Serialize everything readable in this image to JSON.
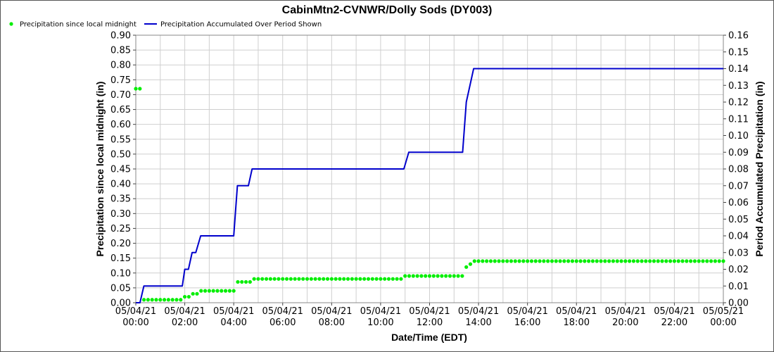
{
  "chart_data": {
    "type": "line",
    "title": "CabinMtn2-CVNWR/Dolly Sods (DY003)",
    "xlabel": "Date/Time (EDT)",
    "ylabel": "Precipitation since local midnight (in)",
    "y2label": "Period Accumulated Precipitation (in)",
    "legend": {
      "placement": "top-left",
      "entries": [
        "Precipitation since local midnight",
        "Precipitation Accumulated Over Period Shown"
      ]
    },
    "grid": true,
    "xlim": [
      0,
      24
    ],
    "ylim": [
      0,
      0.9
    ],
    "y2lim": [
      0,
      0.16
    ],
    "xticks": [
      {
        "value": 0,
        "date": "05/04/21",
        "time": "00:00"
      },
      {
        "value": 2,
        "date": "05/04/21",
        "time": "02:00"
      },
      {
        "value": 4,
        "date": "05/04/21",
        "time": "04:00"
      },
      {
        "value": 6,
        "date": "05/04/21",
        "time": "06:00"
      },
      {
        "value": 8,
        "date": "05/04/21",
        "time": "08:00"
      },
      {
        "value": 10,
        "date": "05/04/21",
        "time": "10:00"
      },
      {
        "value": 12,
        "date": "05/04/21",
        "time": "12:00"
      },
      {
        "value": 14,
        "date": "05/04/21",
        "time": "14:00"
      },
      {
        "value": 16,
        "date": "05/04/21",
        "time": "16:00"
      },
      {
        "value": 18,
        "date": "05/04/21",
        "time": "18:00"
      },
      {
        "value": 20,
        "date": "05/04/21",
        "time": "20:00"
      },
      {
        "value": 22,
        "date": "05/04/21",
        "time": "22:00"
      },
      {
        "value": 24,
        "date": "05/05/21",
        "time": "00:00"
      }
    ],
    "yticks": [
      "0.00",
      "0.05",
      "0.10",
      "0.15",
      "0.20",
      "0.25",
      "0.30",
      "0.35",
      "0.40",
      "0.45",
      "0.50",
      "0.55",
      "0.60",
      "0.65",
      "0.70",
      "0.75",
      "0.80",
      "0.85",
      "0.90"
    ],
    "y2ticks": [
      "0.00",
      "0.01",
      "0.02",
      "0.03",
      "0.04",
      "0.05",
      "0.06",
      "0.07",
      "0.08",
      "0.09",
      "0.10",
      "0.11",
      "0.12",
      "0.13",
      "0.14",
      "0.15",
      "0.16"
    ],
    "series": [
      {
        "name": "Precipitation since local midnight",
        "kind": "points",
        "axis": "left",
        "color": "#00ee00",
        "steps": [
          [
            0.0,
            0.72
          ],
          [
            0.25,
            0.01
          ],
          [
            1.95,
            0.02
          ],
          [
            2.25,
            0.03
          ],
          [
            2.6,
            0.04
          ],
          [
            4.1,
            0.07
          ],
          [
            4.75,
            0.08
          ],
          [
            11.0,
            0.09
          ],
          [
            13.5,
            0.12
          ],
          [
            13.65,
            0.13
          ],
          [
            13.8,
            0.14
          ]
        ],
        "end": 24.0
      },
      {
        "name": "Precipitation Accumulated Over Period Shown",
        "kind": "line",
        "axis": "right",
        "color": "#0000cc",
        "points": [
          [
            0.0,
            0.0
          ],
          [
            0.17,
            0.0
          ],
          [
            0.33,
            0.01
          ],
          [
            1.9,
            0.01
          ],
          [
            2.0,
            0.02
          ],
          [
            2.15,
            0.02
          ],
          [
            2.3,
            0.03
          ],
          [
            2.45,
            0.03
          ],
          [
            2.65,
            0.04
          ],
          [
            4.0,
            0.04
          ],
          [
            4.15,
            0.07
          ],
          [
            4.6,
            0.07
          ],
          [
            4.75,
            0.08
          ],
          [
            10.95,
            0.08
          ],
          [
            11.15,
            0.09
          ],
          [
            13.35,
            0.09
          ],
          [
            13.5,
            0.12
          ],
          [
            13.8,
            0.14
          ],
          [
            24.0,
            0.14
          ]
        ]
      }
    ]
  }
}
